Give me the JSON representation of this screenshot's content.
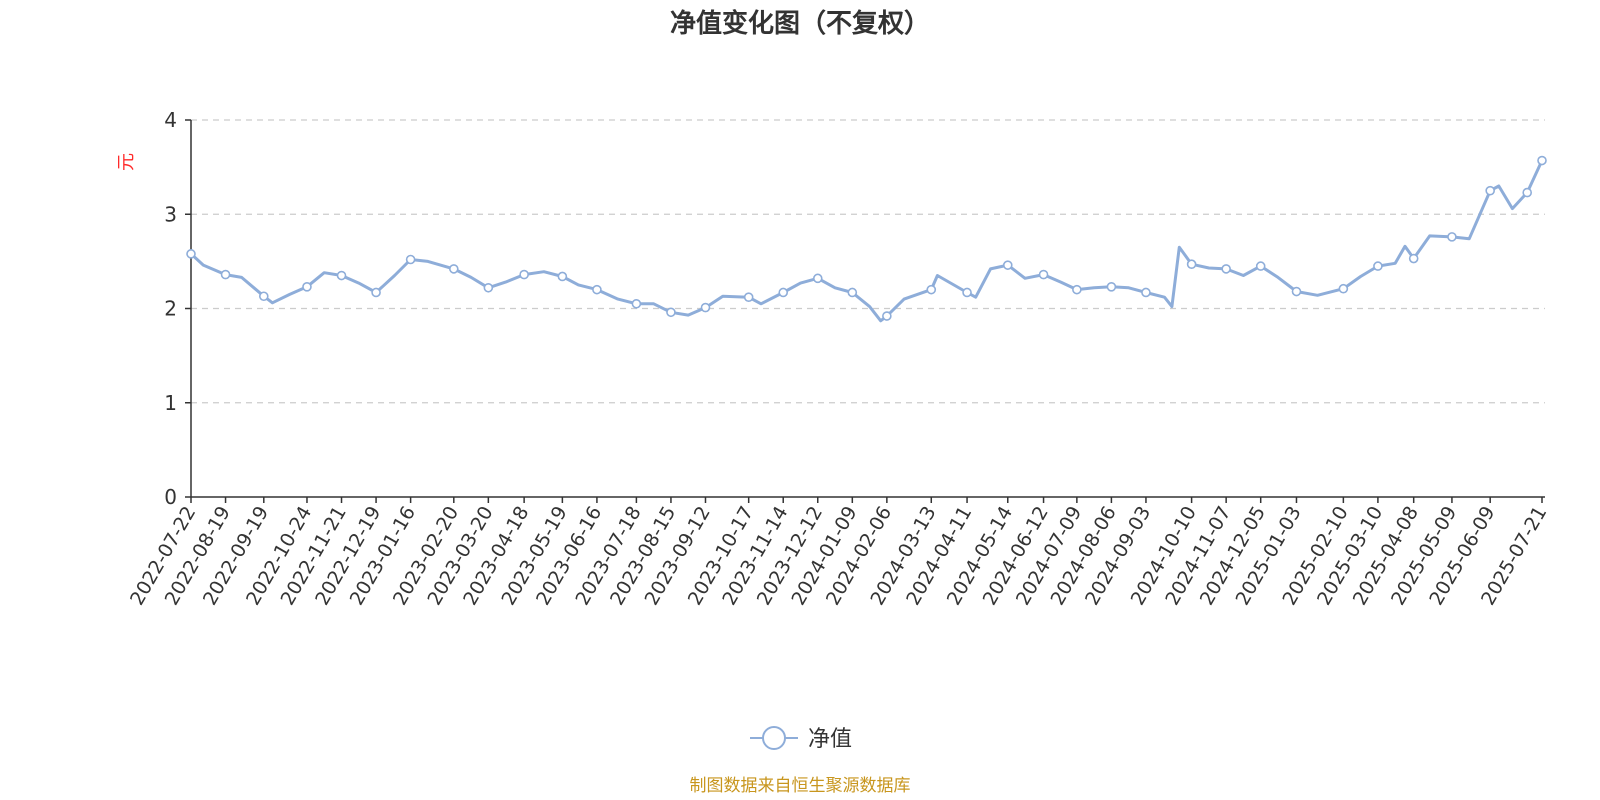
{
  "chart_data": {
    "type": "line",
    "title": "净值变化图（不复权）",
    "ylabel": "元",
    "ylim": [
      0,
      4
    ],
    "yticks": [
      "0",
      "1",
      "2",
      "3",
      "4"
    ],
    "grid": true,
    "legend_position": "bottom-center",
    "xticks": [
      "2022-07-22",
      "2022-08-19",
      "2022-09-19",
      "2022-10-24",
      "2022-11-21",
      "2022-12-19",
      "2023-01-16",
      "2023-02-20",
      "2023-03-20",
      "2023-04-18",
      "2023-05-19",
      "2023-06-16",
      "2023-07-18",
      "2023-08-15",
      "2023-09-12",
      "2023-10-17",
      "2023-11-14",
      "2023-12-12",
      "2024-01-09",
      "2024-02-06",
      "2024-03-13",
      "2024-04-11",
      "2024-05-14",
      "2024-06-12",
      "2024-07-09",
      "2024-08-06",
      "2024-09-03",
      "2024-10-10",
      "2024-11-07",
      "2024-12-05",
      "2025-01-03",
      "2025-02-10",
      "2025-03-10",
      "2025-04-08",
      "2025-05-09",
      "2025-06-09",
      "2025-07-21"
    ],
    "series": [
      {
        "name": "净值",
        "color": "#8eadd9",
        "x": [
          "2022-07-22",
          "2022-08-01",
          "2022-08-19",
          "2022-09-01",
          "2022-09-19",
          "2022-09-26",
          "2022-10-10",
          "2022-10-24",
          "2022-11-07",
          "2022-11-21",
          "2022-12-05",
          "2022-12-19",
          "2023-01-03",
          "2023-01-16",
          "2023-01-30",
          "2023-02-20",
          "2023-03-06",
          "2023-03-20",
          "2023-04-03",
          "2023-04-18",
          "2023-05-04",
          "2023-05-19",
          "2023-06-01",
          "2023-06-16",
          "2023-07-03",
          "2023-07-18",
          "2023-08-01",
          "2023-08-15",
          "2023-08-29",
          "2023-09-12",
          "2023-09-26",
          "2023-10-17",
          "2023-10-27",
          "2023-11-14",
          "2023-11-28",
          "2023-12-12",
          "2023-12-26",
          "2024-01-09",
          "2024-01-23",
          "2024-02-01",
          "2024-02-06",
          "2024-02-20",
          "2024-03-13",
          "2024-03-18",
          "2024-04-11",
          "2024-04-18",
          "2024-04-30",
          "2024-05-14",
          "2024-05-28",
          "2024-06-12",
          "2024-06-26",
          "2024-07-09",
          "2024-07-23",
          "2024-08-06",
          "2024-08-20",
          "2024-09-03",
          "2024-09-18",
          "2024-09-24",
          "2024-09-30",
          "2024-10-10",
          "2024-10-24",
          "2024-11-07",
          "2024-11-21",
          "2024-12-05",
          "2024-12-19",
          "2025-01-03",
          "2025-01-20",
          "2025-02-10",
          "2025-02-24",
          "2025-03-10",
          "2025-03-24",
          "2025-04-01",
          "2025-04-08",
          "2025-04-21",
          "2025-05-09",
          "2025-05-23",
          "2025-06-09",
          "2025-06-16",
          "2025-06-27",
          "2025-07-09",
          "2025-07-21"
        ],
        "y": [
          2.58,
          2.46,
          2.36,
          2.33,
          2.13,
          2.06,
          2.15,
          2.23,
          2.38,
          2.35,
          2.27,
          2.17,
          2.35,
          2.52,
          2.5,
          2.42,
          2.33,
          2.22,
          2.28,
          2.36,
          2.39,
          2.34,
          2.25,
          2.2,
          2.1,
          2.05,
          2.05,
          1.96,
          1.93,
          2.01,
          2.13,
          2.12,
          2.05,
          2.17,
          2.27,
          2.32,
          2.22,
          2.17,
          2.02,
          1.87,
          1.92,
          2.1,
          2.2,
          2.35,
          2.17,
          2.12,
          2.42,
          2.46,
          2.32,
          2.36,
          2.28,
          2.2,
          2.22,
          2.23,
          2.22,
          2.17,
          2.12,
          2.02,
          2.65,
          2.47,
          2.43,
          2.42,
          2.35,
          2.45,
          2.33,
          2.18,
          2.14,
          2.21,
          2.34,
          2.45,
          2.48,
          2.66,
          2.53,
          2.77,
          2.76,
          2.74,
          3.25,
          3.3,
          3.06,
          3.23,
          3.57
        ]
      }
    ],
    "marker_points": [
      [
        "2022-07-22",
        2.58
      ],
      [
        "2022-08-19",
        2.36
      ],
      [
        "2022-09-19",
        2.13
      ],
      [
        "2022-10-24",
        2.23
      ],
      [
        "2022-11-21",
        2.35
      ],
      [
        "2022-12-19",
        2.17
      ],
      [
        "2023-01-16",
        2.52
      ],
      [
        "2023-02-20",
        2.42
      ],
      [
        "2023-03-20",
        2.22
      ],
      [
        "2023-04-18",
        2.36
      ],
      [
        "2023-05-19",
        2.34
      ],
      [
        "2023-06-16",
        2.2
      ],
      [
        "2023-07-18",
        2.05
      ],
      [
        "2023-08-15",
        1.96
      ],
      [
        "2023-09-12",
        2.01
      ],
      [
        "2023-10-17",
        2.12
      ],
      [
        "2023-11-14",
        2.17
      ],
      [
        "2023-12-12",
        2.32
      ],
      [
        "2024-01-09",
        2.17
      ],
      [
        "2024-02-06",
        1.92
      ],
      [
        "2024-03-13",
        2.2
      ],
      [
        "2024-04-11",
        2.17
      ],
      [
        "2024-05-14",
        2.46
      ],
      [
        "2024-06-12",
        2.36
      ],
      [
        "2024-07-09",
        2.2
      ],
      [
        "2024-08-06",
        2.23
      ],
      [
        "2024-09-03",
        2.17
      ],
      [
        "2024-10-10",
        2.47
      ],
      [
        "2024-11-07",
        2.42
      ],
      [
        "2024-12-05",
        2.45
      ],
      [
        "2025-01-03",
        2.18
      ],
      [
        "2025-02-10",
        2.21
      ],
      [
        "2025-03-10",
        2.45
      ],
      [
        "2025-04-08",
        2.53
      ],
      [
        "2025-05-09",
        2.76
      ],
      [
        "2025-06-09",
        3.25
      ],
      [
        "2025-07-09",
        3.23
      ],
      [
        "2025-07-21",
        3.57
      ]
    ]
  },
  "legend": {
    "label": "净值"
  },
  "footer": {
    "source": "制图数据来自恒生聚源数据库"
  }
}
